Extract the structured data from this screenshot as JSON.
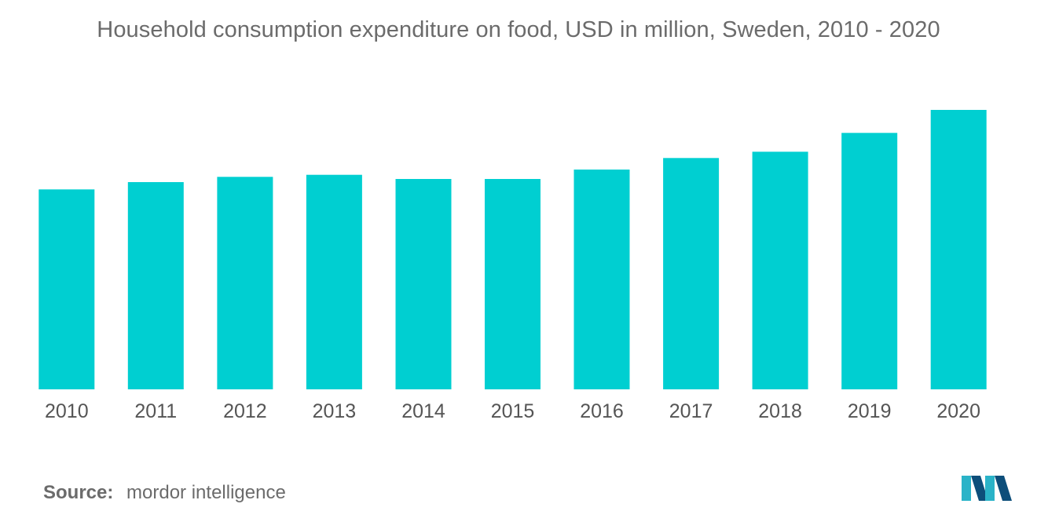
{
  "title": "Household consumption expenditure on food, USD in million, Sweden, 2010 - 2020",
  "source": {
    "label": "Source:",
    "text": "mordor intelligence"
  },
  "logo": {
    "icon": "mordor-intelligence-logo-icon",
    "colors": [
      "#2ab3c8",
      "#0d4e7a"
    ]
  },
  "chart_data": {
    "type": "bar",
    "title": "Household consumption expenditure on food, USD in million, Sweden, 2010 - 2020",
    "categories": [
      "2010",
      "2011",
      "2012",
      "2013",
      "2014",
      "2015",
      "2016",
      "2017",
      "2018",
      "2019",
      "2020"
    ],
    "values": [
      191,
      198,
      203,
      205,
      201,
      201,
      210,
      221,
      227,
      245,
      267
    ],
    "ylim": [
      0,
      300
    ],
    "xlabel": "",
    "ylabel": "",
    "grid": false,
    "legend": "none",
    "bar_color": "#00cfd1"
  }
}
